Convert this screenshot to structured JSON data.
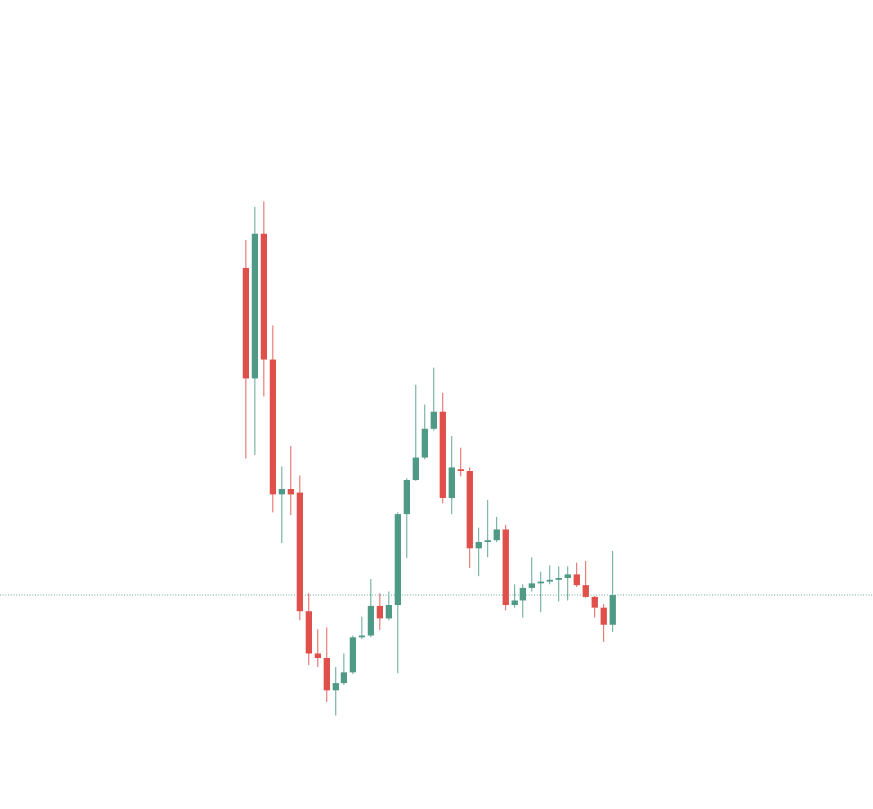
{
  "chart_data": {
    "type": "candlestick",
    "open": [
      602,
      479,
      640,
      500,
      350,
      356,
      352,
      220,
      173,
      168,
      132,
      140,
      152,
      191,
      193,
      226,
      212,
      227,
      328,
      366,
      391,
      423,
      442,
      346,
      378,
      376,
      290,
      297,
      299,
      311,
      227,
      232,
      246,
      251,
      253,
      255,
      257,
      261,
      249,
      236,
      224,
      205
    ],
    "high": [
      633,
      670,
      676,
      538,
      381,
      404,
      371,
      240,
      200,
      202,
      158,
      173,
      193,
      214,
      256,
      240,
      242,
      330,
      368,
      472,
      450,
      491,
      463,
      415,
      402,
      380,
      313,
      344,
      325,
      316,
      250,
      250,
      280,
      264,
      271,
      270,
      270,
      274,
      276,
      237,
      228,
      287
    ],
    "low": [
      390,
      394,
      459,
      330,
      296,
      327,
      210,
      160,
      158,
      119,
      104,
      138,
      150,
      189,
      191,
      199,
      210,
      151,
      279,
      365,
      389,
      421,
      340,
      328,
      370,
      268,
      259,
      280,
      297,
      221,
      224,
      213,
      242,
      219,
      250,
      231,
      232,
      247,
      235,
      213,
      186,
      197
    ],
    "close": [
      479,
      640,
      500,
      350,
      356,
      350,
      220,
      173,
      168,
      132,
      140,
      152,
      191,
      193,
      226,
      212,
      227,
      328,
      366,
      391,
      423,
      442,
      346,
      380,
      376,
      290,
      297,
      299,
      311,
      227,
      232,
      246,
      251,
      253,
      255,
      257,
      261,
      249,
      236,
      224,
      205,
      238
    ],
    "up_color": "#4f9a86",
    "down_color": "#e0504b",
    "last_price": 238,
    "last_price_color": "#4f9a86",
    "ylim": [
      0,
      900
    ]
  }
}
